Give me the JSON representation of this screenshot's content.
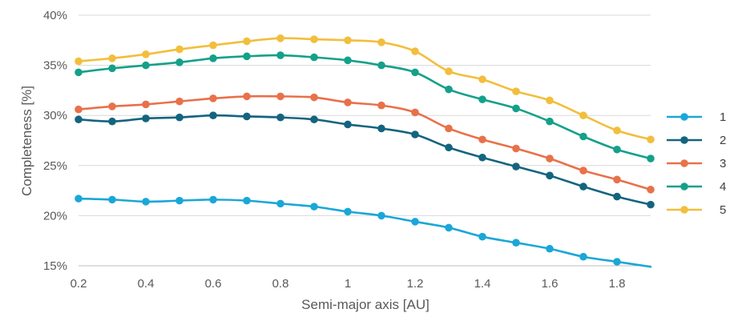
{
  "chart_data": {
    "type": "line",
    "title": "",
    "xlabel": "Semi-major axis [AU]",
    "ylabel": "Completeness [%]",
    "xlim": [
      0.2,
      1.9
    ],
    "ylim": [
      15,
      40
    ],
    "x_ticks": [
      "0.2",
      "0.4",
      "0.6",
      "0.8",
      "1",
      "1.2",
      "1.4",
      "1.6",
      "1.8"
    ],
    "y_ticks": [
      "15%",
      "20%",
      "25%",
      "30%",
      "35%",
      "40%"
    ],
    "grid": "horizontal",
    "legend_position": "right",
    "x": [
      0.2,
      0.3,
      0.4,
      0.5,
      0.6,
      0.7,
      0.8,
      0.9,
      1.0,
      1.1,
      1.2,
      1.3,
      1.4,
      1.5,
      1.6,
      1.7,
      1.8,
      1.9
    ],
    "series": [
      {
        "name": "1",
        "color": "#1AA7D8",
        "values": [
          21.7,
          21.6,
          21.4,
          21.5,
          21.6,
          21.5,
          21.2,
          20.9,
          20.4,
          20.0,
          19.4,
          18.8,
          17.9,
          17.3,
          16.7,
          15.9,
          15.4,
          14.9
        ]
      },
      {
        "name": "2",
        "color": "#14647F",
        "values": [
          29.6,
          29.4,
          29.7,
          29.8,
          30.0,
          29.9,
          29.8,
          29.6,
          29.1,
          28.7,
          28.1,
          26.8,
          25.8,
          24.9,
          24.0,
          22.9,
          21.9,
          21.1
        ]
      },
      {
        "name": "3",
        "color": "#E8714A",
        "values": [
          30.6,
          30.9,
          31.1,
          31.4,
          31.7,
          31.9,
          31.9,
          31.8,
          31.3,
          31.0,
          30.3,
          28.7,
          27.6,
          26.7,
          25.7,
          24.5,
          23.6,
          22.6
        ]
      },
      {
        "name": "4",
        "color": "#14A08A",
        "values": [
          34.3,
          34.7,
          35.0,
          35.3,
          35.7,
          35.9,
          36.0,
          35.8,
          35.5,
          35.0,
          34.3,
          32.6,
          31.6,
          30.7,
          29.4,
          27.9,
          26.6,
          25.7
        ]
      },
      {
        "name": "5",
        "color": "#F2BE3C",
        "values": [
          35.4,
          35.7,
          36.1,
          36.6,
          37.0,
          37.4,
          37.7,
          37.6,
          37.5,
          37.3,
          36.4,
          34.4,
          33.6,
          32.4,
          31.5,
          30.0,
          28.5,
          27.6
        ]
      }
    ]
  }
}
